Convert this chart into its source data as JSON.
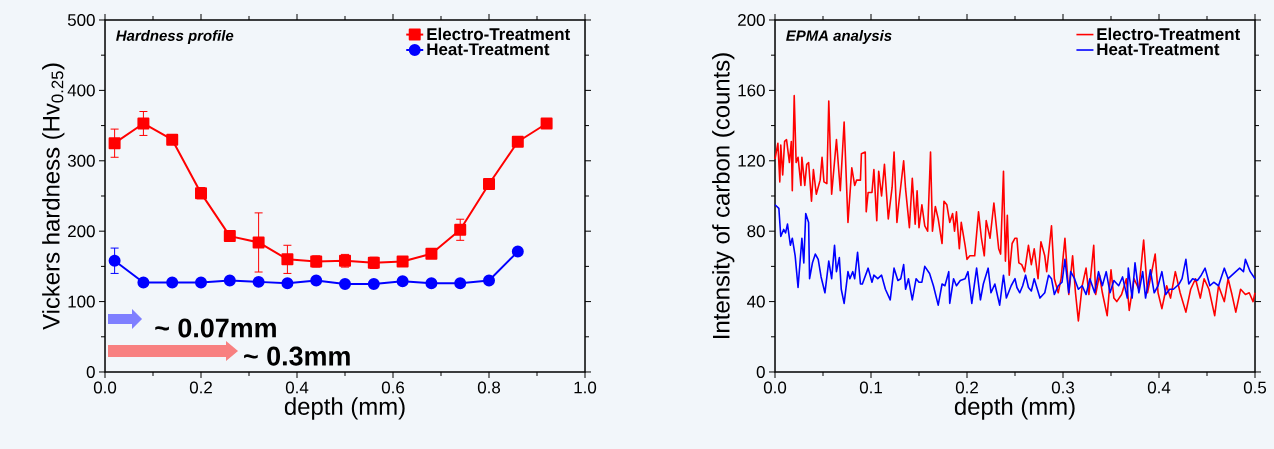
{
  "chart_data": [
    {
      "type": "line",
      "xlabel": "depth (mm)",
      "ylabel": "Vickers hardness (Hv$_{0.25}$)",
      "annotations": [
        "Hardness profile",
        "~ 0.07mm",
        "~ 0.3mm"
      ],
      "xlim": [
        0,
        1.0
      ],
      "ylim": [
        0,
        500
      ],
      "xticks": [
        {
          "value": 0,
          "label": "0.0"
        },
        {
          "value": 0.2,
          "label": "0.2"
        },
        {
          "value": 0.4,
          "label": "0.4"
        },
        {
          "value": 0.6,
          "label": "0.6"
        },
        {
          "value": 0.8,
          "label": "0.8"
        },
        {
          "value": 1.0,
          "label": "1.0"
        }
      ],
      "yticks": [
        0,
        100,
        200,
        300,
        400,
        500
      ],
      "legend": "top right",
      "series": [
        {
          "name": "Electro-Treatment",
          "color": "#ff0000",
          "marker": "square",
          "x": [
            0.02,
            0.08,
            0.14,
            0.2,
            0.26,
            0.32,
            0.38,
            0.44,
            0.5,
            0.56,
            0.62,
            0.68,
            0.74,
            0.8,
            0.86,
            0.92
          ],
          "values": [
            325,
            353,
            330,
            254,
            193,
            184,
            160,
            157,
            158,
            155,
            157,
            168,
            202,
            267,
            327,
            353
          ],
          "errors": [
            20,
            17,
            null,
            8,
            null,
            42,
            20,
            8,
            9,
            8,
            null,
            null,
            15,
            null,
            null,
            null
          ]
        },
        {
          "name": "Heat-Treatment",
          "color": "#0000ff",
          "marker": "circle",
          "x": [
            0.02,
            0.08,
            0.14,
            0.2,
            0.26,
            0.32,
            0.38,
            0.44,
            0.5,
            0.56,
            0.62,
            0.68,
            0.74,
            0.8,
            0.86
          ],
          "values": [
            158,
            127,
            127,
            127,
            130,
            128,
            126,
            130,
            125,
            125,
            129,
            126,
            126,
            130,
            171
          ],
          "errors": [
            18,
            null,
            null,
            null,
            null,
            null,
            null,
            null,
            null,
            null,
            null,
            null,
            null,
            null,
            null
          ]
        }
      ]
    },
    {
      "type": "line",
      "xlabel": "depth (mm)",
      "ylabel": "Intensity of carbon (counts)",
      "annotations": [
        "EPMA analysis"
      ],
      "xlim": [
        0,
        0.5
      ],
      "ylim": [
        0,
        200
      ],
      "xticks": [
        {
          "value": 0,
          "label": "0.0"
        },
        {
          "value": 0.1,
          "label": "0.1"
        },
        {
          "value": 0.2,
          "label": "0.2"
        },
        {
          "value": 0.3,
          "label": "0.3"
        },
        {
          "value": 0.4,
          "label": "0.4"
        },
        {
          "value": 0.5,
          "label": "0.5"
        }
      ],
      "yticks": [
        0,
        40,
        80,
        120,
        160,
        200
      ],
      "legend": "top right",
      "series": [
        {
          "name": "Electro-Treatment",
          "color": "#ff0000",
          "x": [
            0.0,
            0.003,
            0.005,
            0.006,
            0.008,
            0.01,
            0.012,
            0.015,
            0.017,
            0.018,
            0.02,
            0.022,
            0.024,
            0.027,
            0.028,
            0.031,
            0.033,
            0.035,
            0.038,
            0.04,
            0.043,
            0.047,
            0.049,
            0.051,
            0.054,
            0.056,
            0.059,
            0.064,
            0.068,
            0.072,
            0.076,
            0.08,
            0.083,
            0.085,
            0.089,
            0.09,
            0.094,
            0.095,
            0.097,
            0.101,
            0.103,
            0.106,
            0.108,
            0.111,
            0.114,
            0.118,
            0.122,
            0.124,
            0.127,
            0.129,
            0.134,
            0.136,
            0.14,
            0.143,
            0.146,
            0.148,
            0.15,
            0.153,
            0.156,
            0.159,
            0.162,
            0.164,
            0.167,
            0.17,
            0.174,
            0.176,
            0.179,
            0.182,
            0.185,
            0.187,
            0.189,
            0.192,
            0.194,
            0.198,
            0.2,
            0.203,
            0.208,
            0.212,
            0.215,
            0.218,
            0.22,
            0.224,
            0.228,
            0.233,
            0.235,
            0.238,
            0.24,
            0.242,
            0.244,
            0.247,
            0.25,
            0.252,
            0.254,
            0.257,
            0.26,
            0.264,
            0.267,
            0.27,
            0.274,
            0.277,
            0.281,
            0.283,
            0.288,
            0.291,
            0.295,
            0.298,
            0.302,
            0.306,
            0.31,
            0.313,
            0.316,
            0.32,
            0.324,
            0.327,
            0.332,
            0.334,
            0.338,
            0.341,
            0.346,
            0.35,
            0.353,
            0.356,
            0.361,
            0.366,
            0.369,
            0.374,
            0.379,
            0.384,
            0.388,
            0.391,
            0.396,
            0.399,
            0.403,
            0.408,
            0.412,
            0.417,
            0.422,
            0.428,
            0.433,
            0.438,
            0.443,
            0.447,
            0.452,
            0.458,
            0.462,
            0.468,
            0.472,
            0.476,
            0.48,
            0.485,
            0.49,
            0.494,
            0.498,
            0.5
          ],
          "values": [
            121,
            130,
            108,
            129,
            112,
            131,
            132,
            119,
            131,
            103,
            157,
            119,
            122,
            106,
            122,
            106,
            118,
            119,
            97,
            115,
            101,
            109,
            122,
            108,
            107,
            154,
            101,
            132,
            103,
            142,
            85,
            116,
            106,
            109,
            109,
            124,
            125,
            91,
            102,
            102,
            115,
            86,
            114,
            100,
            118,
            87,
            105,
            125,
            85,
            96,
            120,
            104,
            82,
            110,
            84,
            103,
            82,
            95,
            83,
            80,
            125,
            80,
            94,
            87,
            73,
            97,
            95,
            85,
            90,
            80,
            91,
            70,
            85,
            72,
            64,
            66,
            66,
            91,
            76,
            66,
            86,
            76,
            96,
            70,
            67,
            114,
            63,
            89,
            55,
            73,
            76,
            76,
            62,
            61,
            57,
            72,
            61,
            70,
            53,
            74,
            66,
            57,
            83,
            53,
            45,
            53,
            76,
            44,
            66,
            45,
            29,
            49,
            59,
            44,
            72,
            44,
            55,
            45,
            32,
            58,
            42,
            40,
            44,
            53,
            35,
            53,
            47,
            75,
            45,
            53,
            67,
            45,
            36,
            49,
            42,
            57,
            45,
            34,
            47,
            53,
            42,
            53,
            47,
            32,
            49,
            40,
            53,
            44,
            34,
            47,
            44,
            45,
            40,
            45
          ]
        },
        {
          "name": "Heat-Treatment",
          "color": "#0000ff",
          "x": [
            0.0,
            0.004,
            0.006,
            0.009,
            0.011,
            0.013,
            0.016,
            0.018,
            0.021,
            0.024,
            0.028,
            0.03,
            0.032,
            0.035,
            0.036,
            0.039,
            0.042,
            0.045,
            0.048,
            0.052,
            0.056,
            0.059,
            0.062,
            0.064,
            0.067,
            0.069,
            0.072,
            0.076,
            0.078,
            0.081,
            0.083,
            0.086,
            0.089,
            0.091,
            0.097,
            0.101,
            0.103,
            0.107,
            0.111,
            0.115,
            0.12,
            0.124,
            0.128,
            0.131,
            0.134,
            0.136,
            0.139,
            0.143,
            0.147,
            0.15,
            0.153,
            0.156,
            0.161,
            0.165,
            0.17,
            0.174,
            0.177,
            0.181,
            0.182,
            0.186,
            0.189,
            0.193,
            0.198,
            0.201,
            0.205,
            0.21,
            0.214,
            0.217,
            0.222,
            0.225,
            0.229,
            0.234,
            0.238,
            0.241,
            0.246,
            0.25,
            0.252,
            0.255,
            0.258,
            0.261,
            0.264,
            0.267,
            0.27,
            0.276,
            0.281,
            0.285,
            0.288,
            0.291,
            0.295,
            0.299,
            0.302,
            0.306,
            0.308,
            0.312,
            0.316,
            0.32,
            0.324,
            0.328,
            0.333,
            0.337,
            0.341,
            0.345,
            0.349,
            0.353,
            0.358,
            0.362,
            0.367,
            0.368,
            0.372,
            0.375,
            0.379,
            0.383,
            0.386,
            0.391,
            0.395,
            0.399,
            0.403,
            0.407,
            0.411,
            0.415,
            0.421,
            0.424,
            0.428,
            0.431,
            0.435,
            0.44,
            0.444,
            0.448,
            0.453,
            0.457,
            0.462,
            0.468,
            0.472,
            0.476,
            0.48,
            0.484,
            0.488,
            0.49,
            0.495,
            0.5
          ],
          "values": [
            95,
            93,
            77,
            81,
            79,
            84,
            72,
            76,
            66,
            48,
            76,
            62,
            90,
            85,
            53,
            62,
            67,
            64,
            54,
            45,
            63,
            53,
            72,
            57,
            65,
            47,
            39,
            57,
            53,
            57,
            53,
            68,
            50,
            50,
            59,
            51,
            55,
            53,
            55,
            47,
            41,
            59,
            52,
            53,
            61,
            47,
            53,
            41,
            53,
            51,
            51,
            60,
            56,
            49,
            38,
            50,
            49,
            57,
            39,
            53,
            49,
            52,
            53,
            57,
            39,
            59,
            41,
            50,
            59,
            45,
            50,
            38,
            55,
            42,
            49,
            53,
            48,
            45,
            49,
            55,
            48,
            46,
            53,
            42,
            45,
            55,
            53,
            44,
            49,
            51,
            64,
            45,
            57,
            53,
            47,
            49,
            44,
            53,
            45,
            57,
            49,
            57,
            45,
            52,
            49,
            54,
            42,
            59,
            42,
            62,
            45,
            57,
            42,
            58,
            45,
            49,
            57,
            44,
            47,
            47,
            50,
            53,
            64,
            50,
            53,
            52,
            55,
            59,
            49,
            51,
            49,
            59,
            53,
            55,
            57,
            59,
            57,
            64,
            57,
            53
          ]
        }
      ]
    }
  ]
}
